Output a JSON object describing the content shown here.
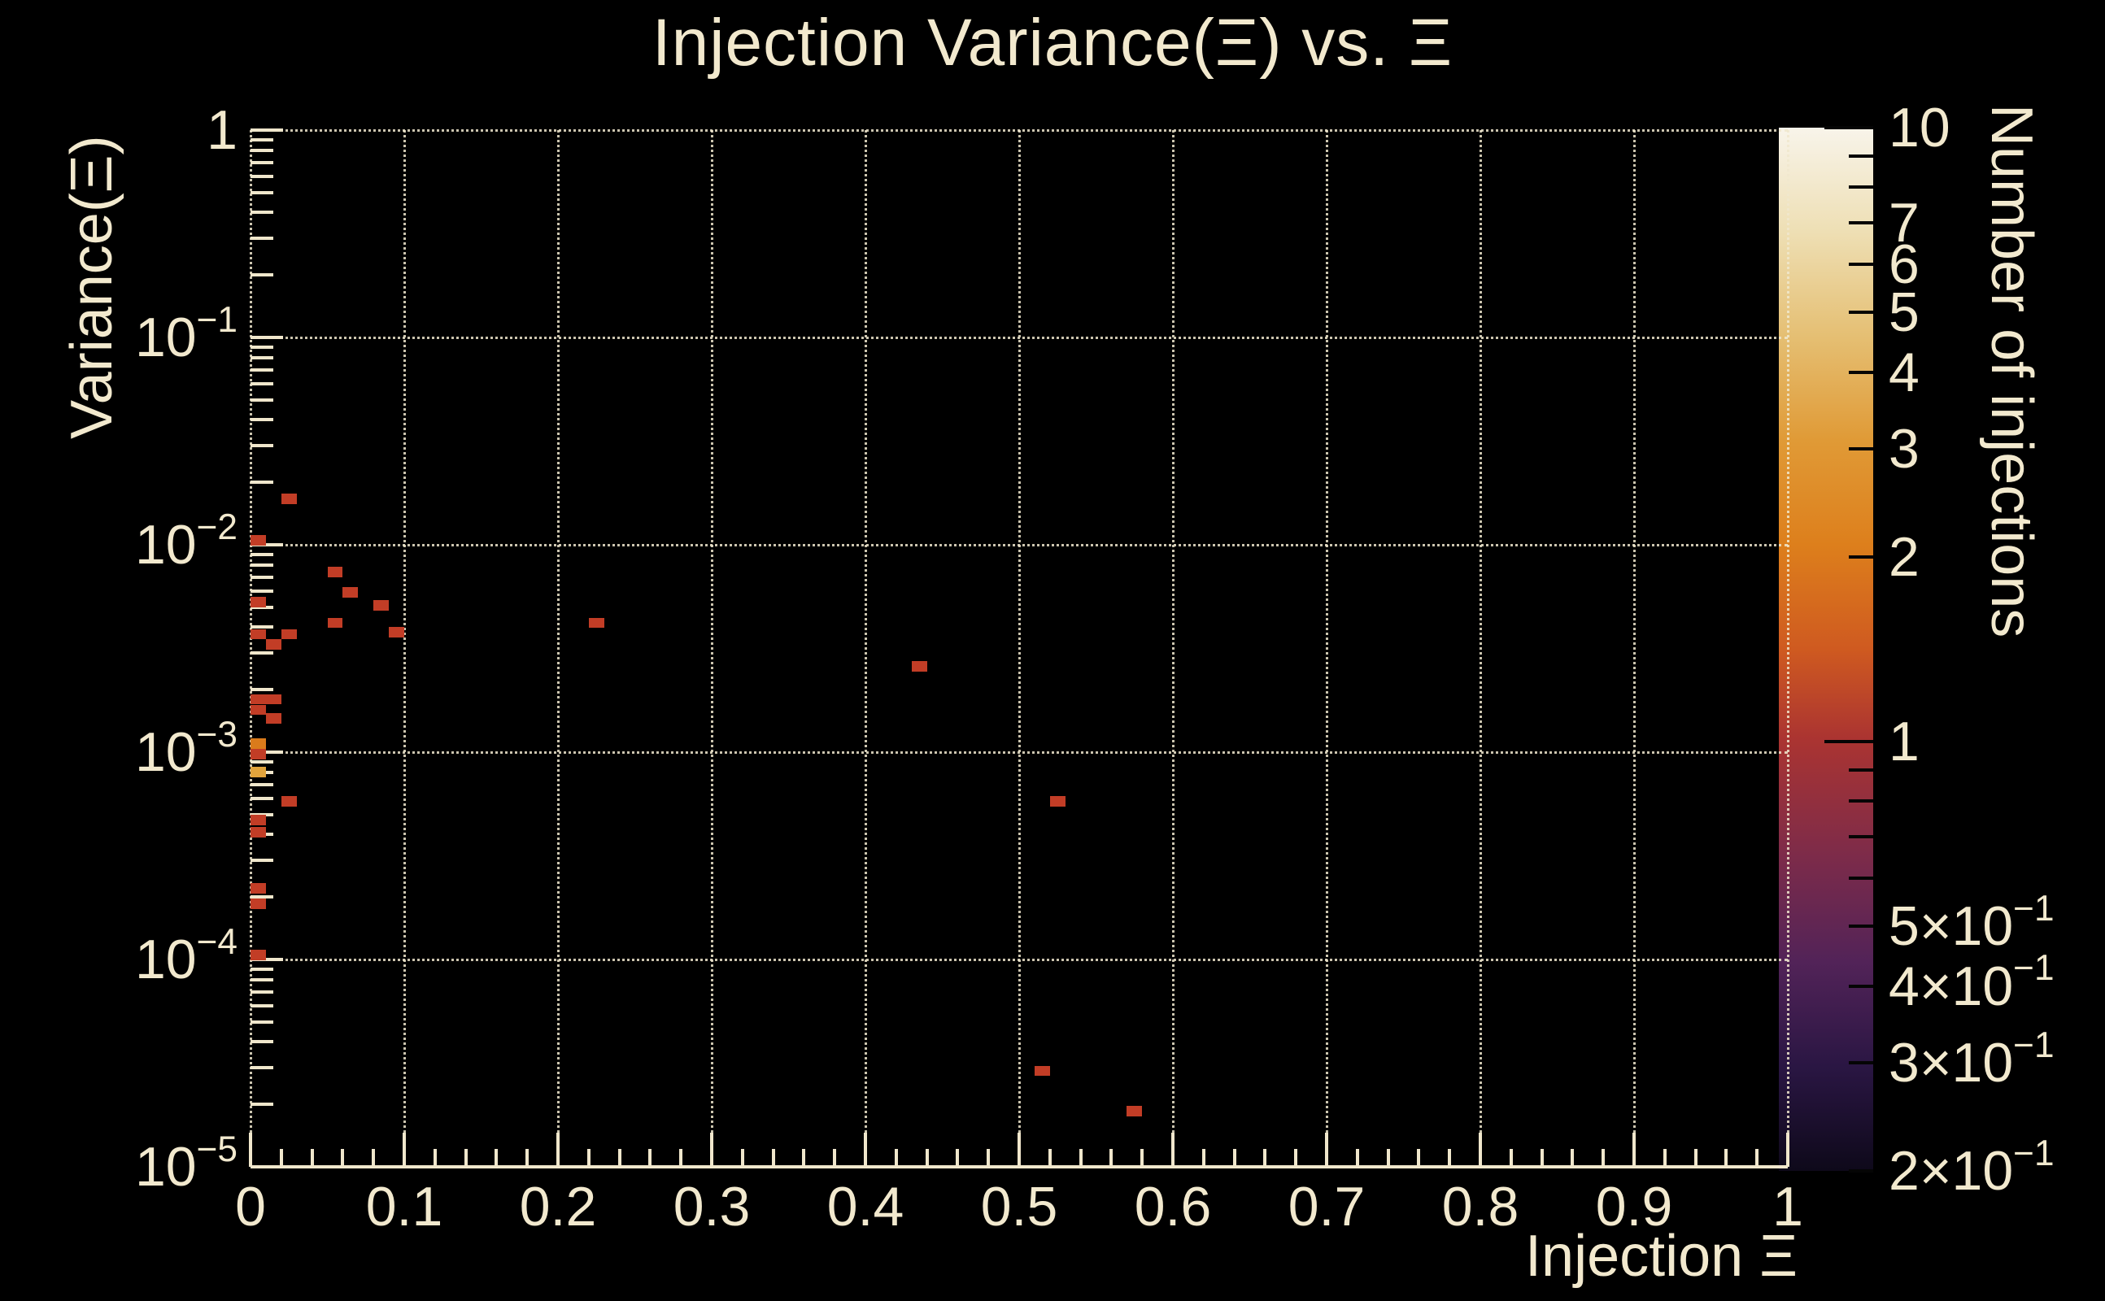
{
  "title": "Injection Variance(Ξ) vs. Ξ",
  "colors": {
    "background": "#000000",
    "text": "#f2e9ce",
    "grid": "#f0e7cc",
    "count_palette": {
      "1": "#c23d26",
      "2": "#da7b1b",
      "3": "#e2a43c"
    }
  },
  "chart_data": {
    "type": "heatmap",
    "title": "Injection Variance(Ξ) vs. Ξ",
    "xlabel": "Injection Ξ",
    "ylabel": "Variance(Ξ)",
    "zlabel": "Number of injections",
    "x_range": [
      0,
      1
    ],
    "y_range": [
      1e-05,
      1
    ],
    "y_scale": "log",
    "z_range": [
      0.2,
      10
    ],
    "z_scale": "log",
    "grid": true,
    "bin_width_x": 0.01,
    "bin_height_decades": 0.05,
    "x_ticks": {
      "values": [
        0,
        0.1,
        0.2,
        0.3,
        0.4,
        0.5,
        0.6,
        0.7,
        0.8,
        0.9,
        1
      ],
      "labels": [
        "0",
        "0.1",
        "0.2",
        "0.3",
        "0.4",
        "0.5",
        "0.6",
        "0.7",
        "0.8",
        "0.9",
        "1"
      ],
      "minor_step": 0.02
    },
    "y_ticks": [
      {
        "v": 1,
        "base": "1",
        "exp": ""
      },
      {
        "v": 0.1,
        "base": "10",
        "exp": "−1"
      },
      {
        "v": 0.01,
        "base": "10",
        "exp": "−2"
      },
      {
        "v": 0.001,
        "base": "10",
        "exp": "−3"
      },
      {
        "v": 0.0001,
        "base": "10",
        "exp": "−4"
      },
      {
        "v": 1e-05,
        "base": "10",
        "exp": "−5"
      }
    ],
    "points": [
      {
        "x": 0.025,
        "y": 0.0166,
        "n": 1
      },
      {
        "x": 0.005,
        "y": 0.0105,
        "n": 1
      },
      {
        "x": 0.055,
        "y": 0.0074,
        "n": 1
      },
      {
        "x": 0.065,
        "y": 0.0059,
        "n": 1
      },
      {
        "x": 0.085,
        "y": 0.0051,
        "n": 1
      },
      {
        "x": 0.005,
        "y": 0.0053,
        "n": 1
      },
      {
        "x": 0.055,
        "y": 0.0042,
        "n": 1
      },
      {
        "x": 0.095,
        "y": 0.0038,
        "n": 1
      },
      {
        "x": 0.005,
        "y": 0.0037,
        "n": 1
      },
      {
        "x": 0.025,
        "y": 0.0037,
        "n": 1
      },
      {
        "x": 0.015,
        "y": 0.0033,
        "n": 1
      },
      {
        "x": 0.225,
        "y": 0.0042,
        "n": 1
      },
      {
        "x": 0.435,
        "y": 0.0026,
        "n": 1
      },
      {
        "x": 0.005,
        "y": 0.0018,
        "n": 1
      },
      {
        "x": 0.015,
        "y": 0.0018,
        "n": 1
      },
      {
        "x": 0.005,
        "y": 0.0016,
        "n": 1
      },
      {
        "x": 0.015,
        "y": 0.00145,
        "n": 1
      },
      {
        "x": 0.005,
        "y": 0.0011,
        "n": 2
      },
      {
        "x": 0.005,
        "y": 0.00098,
        "n": 1
      },
      {
        "x": 0.005,
        "y": 0.0008,
        "n": 3
      },
      {
        "x": 0.025,
        "y": 0.00058,
        "n": 1
      },
      {
        "x": 0.005,
        "y": 0.00047,
        "n": 1
      },
      {
        "x": 0.005,
        "y": 0.00041,
        "n": 1
      },
      {
        "x": 0.005,
        "y": 0.00022,
        "n": 1
      },
      {
        "x": 0.005,
        "y": 0.000185,
        "n": 1
      },
      {
        "x": 0.005,
        "y": 0.000105,
        "n": 1
      },
      {
        "x": 0.525,
        "y": 0.00058,
        "n": 1
      },
      {
        "x": 0.515,
        "y": 2.9e-05,
        "n": 1
      },
      {
        "x": 0.575,
        "y": 1.85e-05,
        "n": 1
      }
    ],
    "colorbar": {
      "labeled_ticks": [
        {
          "v": 10,
          "base": "10",
          "exp": ""
        },
        {
          "v": 7,
          "base": "7",
          "exp": ""
        },
        {
          "v": 6,
          "base": "6",
          "exp": ""
        },
        {
          "v": 5,
          "base": "5",
          "exp": ""
        },
        {
          "v": 4,
          "base": "4",
          "exp": ""
        },
        {
          "v": 3,
          "base": "3",
          "exp": ""
        },
        {
          "v": 2,
          "base": "2",
          "exp": ""
        },
        {
          "v": 1,
          "base": "1",
          "exp": ""
        },
        {
          "v": 0.5,
          "base": "5×10",
          "exp": "−1"
        },
        {
          "v": 0.4,
          "base": "4×10",
          "exp": "−1"
        },
        {
          "v": 0.3,
          "base": "3×10",
          "exp": "−1"
        },
        {
          "v": 0.2,
          "base": "2×10",
          "exp": "−1"
        }
      ],
      "unlabeled_ticks": [
        9,
        8,
        0.9,
        0.8,
        0.7,
        0.6
      ],
      "major_ticks": [
        10,
        1
      ],
      "gradient": [
        {
          "pos": 0.0,
          "color": "#f8f4ea"
        },
        {
          "pos": 0.1,
          "color": "#eedfb4"
        },
        {
          "pos": 0.2,
          "color": "#e5bf73"
        },
        {
          "pos": 0.3,
          "color": "#e09a36"
        },
        {
          "pos": 0.4,
          "color": "#dd7f1c"
        },
        {
          "pos": 0.5,
          "color": "#cf5a20"
        },
        {
          "pos": 0.585,
          "color": "#ab3431"
        },
        {
          "pos": 0.7,
          "color": "#7c2b4a"
        },
        {
          "pos": 0.8,
          "color": "#522358"
        },
        {
          "pos": 0.9,
          "color": "#2a1643"
        },
        {
          "pos": 1.0,
          "color": "#0e091a"
        }
      ]
    }
  }
}
